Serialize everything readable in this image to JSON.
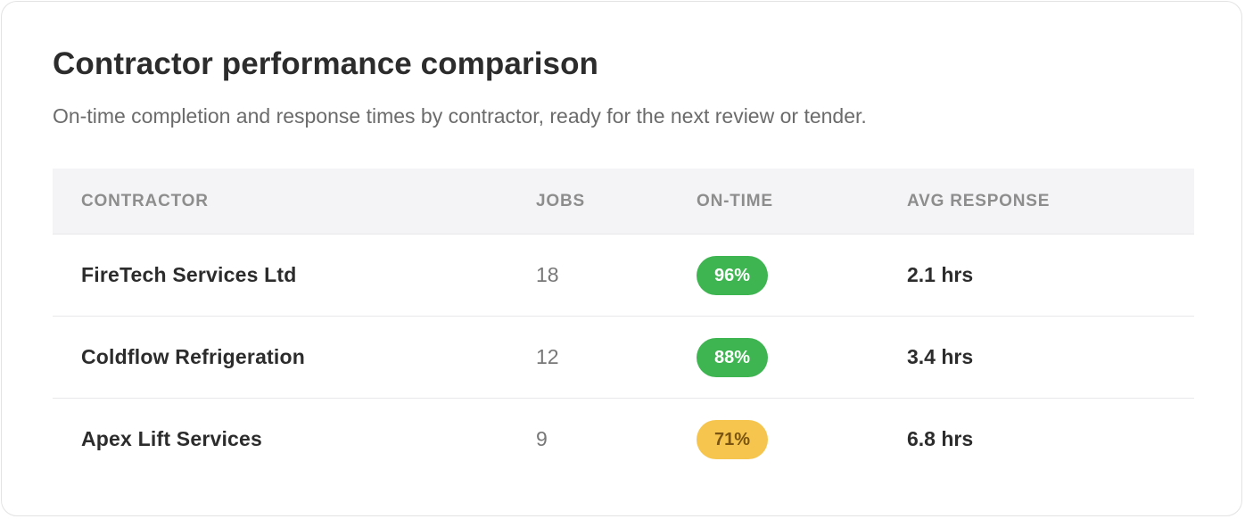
{
  "title": "Contractor performance comparison",
  "subtitle": "On-time completion and response times by contractor, ready for the next review or tender.",
  "table": {
    "headers": {
      "contractor": "CONTRACTOR",
      "jobs": "JOBS",
      "on_time": "ON-TIME",
      "avg_response": "AVG RESPONSE"
    },
    "rows": [
      {
        "contractor": "FireTech Services Ltd",
        "jobs": "18",
        "on_time": "96%",
        "avg_response": "2.1 hrs",
        "status_color": "#3fb552"
      },
      {
        "contractor": "Coldflow Refrigeration",
        "jobs": "12",
        "on_time": "88%",
        "avg_response": "3.4 hrs",
        "status_color": "#3fb552"
      },
      {
        "contractor": "Apex Lift Services",
        "jobs": "9",
        "on_time": "71%",
        "avg_response": "6.8 hrs",
        "status_color": "#f5c54e"
      }
    ]
  }
}
